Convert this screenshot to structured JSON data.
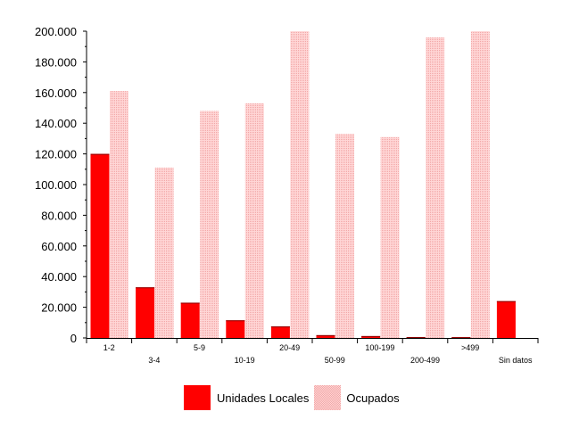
{
  "chart_data": {
    "type": "bar",
    "categories": [
      "1-2",
      "3-4",
      "5-9",
      "10-19",
      "20-49",
      "50-99",
      "100-199",
      "200-499",
      ">499",
      "Sin datos"
    ],
    "series": [
      {
        "name": "Unidades Locales",
        "color": "#ff0000",
        "values": [
          120000,
          33000,
          23000,
          11500,
          7500,
          1800,
          1200,
          600,
          500,
          24000
        ]
      },
      {
        "name": "Ocupados",
        "color": "#ffc8c8",
        "values": [
          161000,
          111000,
          148000,
          153000,
          200000,
          133000,
          131000,
          196000,
          200000,
          0
        ]
      }
    ],
    "yticks": [
      "0",
      "20.000",
      "40.000",
      "60.000",
      "80.000",
      "100.000",
      "120.000",
      "140.000",
      "160.000",
      "180.000",
      "200.000"
    ],
    "ylim": [
      0,
      200000
    ],
    "grid": true,
    "legend_position": "bottom"
  }
}
